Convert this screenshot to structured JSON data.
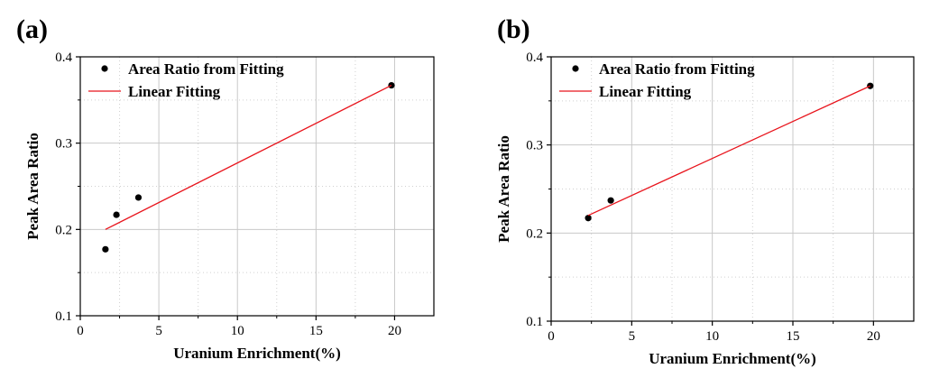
{
  "panels": [
    {
      "label": "(a)",
      "chart_data": {
        "type": "scatter",
        "xlabel": "Uranium Enrichment(%)",
        "ylabel": "Peak Area Ratio",
        "xlim": [
          0,
          22.5
        ],
        "ylim": [
          0.1,
          0.4
        ],
        "xticks": [
          0,
          5,
          10,
          15,
          20
        ],
        "yticks": [
          0.1,
          0.2,
          0.3,
          0.4
        ],
        "xtick_labels": [
          "0",
          "5",
          "10",
          "15",
          "20"
        ],
        "ytick_labels": [
          "0.1",
          "0.2",
          "0.3",
          "0.4"
        ],
        "grid": true,
        "legend_position": "top-left",
        "series": [
          {
            "name": "Area Ratio from Fitting",
            "kind": "points",
            "color": "#000000",
            "x": [
              1.6,
              2.3,
              3.7,
              19.8
            ],
            "y": [
              0.177,
              0.217,
              0.237,
              0.367
            ]
          },
          {
            "name": "Linear Fitting",
            "kind": "line",
            "color": "#e8141c",
            "x": [
              1.6,
              19.8
            ],
            "y": [
              0.2,
              0.367
            ]
          }
        ]
      }
    },
    {
      "label": "(b)",
      "chart_data": {
        "type": "scatter",
        "xlabel": "Uranium Enrichment(%)",
        "ylabel": "Peak Area Ratio",
        "xlim": [
          0,
          22.5
        ],
        "ylim": [
          0.1,
          0.4
        ],
        "xticks": [
          0,
          5,
          10,
          15,
          20
        ],
        "yticks": [
          0.1,
          0.2,
          0.3,
          0.4
        ],
        "xtick_labels": [
          "0",
          "5",
          "10",
          "15",
          "20"
        ],
        "ytick_labels": [
          "0.1",
          "0.2",
          "0.3",
          "0.4"
        ],
        "grid": true,
        "legend_position": "top-left",
        "series": [
          {
            "name": "Area Ratio from Fitting",
            "kind": "points",
            "color": "#000000",
            "x": [
              2.3,
              3.7,
              19.8
            ],
            "y": [
              0.217,
              0.237,
              0.367
            ]
          },
          {
            "name": "Linear Fitting",
            "kind": "line",
            "color": "#e8141c",
            "x": [
              2.3,
              19.8
            ],
            "y": [
              0.22,
              0.367
            ]
          }
        ]
      }
    }
  ]
}
